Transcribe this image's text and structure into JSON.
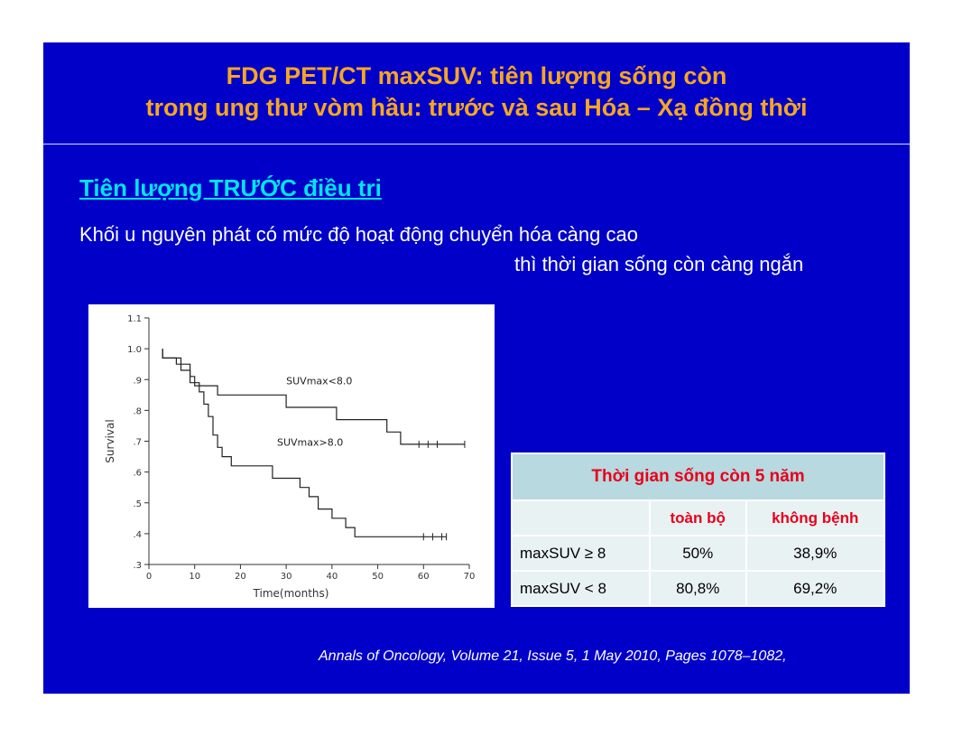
{
  "slide": {
    "title_line1": "FDG PET/CT maxSUV: tiên lượng sống còn",
    "title_line2": "trong ung thư vòm hầu: trước và sau Hóa – Xạ đồng thời",
    "subheading": "Tiên lượng TRƯỚC điều tri",
    "body_line1": "Khối u nguyên phát có mức độ hoạt động chuyển hóa càng cao",
    "body_line2": "thì thời gian sống còn càng ngắn",
    "citation": "Annals of Oncology, Volume 21, Issue 5, 1 May 2010, Pages 1078–1082,"
  },
  "colors": {
    "background": "#0000c8",
    "title": "#f5a623",
    "subheading": "#00e5ee",
    "table_header": "#e8001c"
  },
  "table": {
    "title": "Thời gian sống còn 5 năm",
    "columns": [
      "",
      "toàn bộ",
      "không bệnh"
    ],
    "rows": [
      [
        "maxSUV ≥ 8",
        "50%",
        "38,9%"
      ],
      [
        "maxSUV < 8",
        "80,8%",
        "69,2%"
      ]
    ]
  },
  "chart_data": {
    "type": "line",
    "xlabel": "Time(months)",
    "ylabel": "Survival",
    "xlim": [
      0,
      70
    ],
    "ylim": [
      0.3,
      1.1
    ],
    "x_ticks": [
      "0",
      "10",
      "20",
      "30",
      "40",
      "50",
      "60",
      "70"
    ],
    "y_ticks": [
      ".3",
      ".4",
      ".5",
      ".6",
      ".7",
      ".8",
      ".9",
      "1.0",
      "1.1"
    ],
    "series": [
      {
        "name": "SUVmax<8.0",
        "step": [
          [
            3,
            1.0
          ],
          [
            3,
            0.97
          ],
          [
            7,
            0.97
          ],
          [
            7,
            0.95
          ],
          [
            9,
            0.95
          ],
          [
            9,
            0.91
          ],
          [
            10,
            0.91
          ],
          [
            10,
            0.88
          ],
          [
            15,
            0.88
          ],
          [
            15,
            0.85
          ],
          [
            30,
            0.85
          ],
          [
            30,
            0.81
          ],
          [
            41,
            0.81
          ],
          [
            41,
            0.77
          ],
          [
            52,
            0.77
          ],
          [
            52,
            0.73
          ],
          [
            55,
            0.73
          ],
          [
            55,
            0.69
          ],
          [
            69,
            0.69
          ]
        ],
        "censored": [
          [
            59,
            0.69
          ],
          [
            61,
            0.69
          ],
          [
            63,
            0.69
          ],
          [
            69,
            0.69
          ]
        ]
      },
      {
        "name": "SUVmax>8.0",
        "step": [
          [
            3,
            1.0
          ],
          [
            3,
            0.97
          ],
          [
            6,
            0.97
          ],
          [
            6,
            0.95
          ],
          [
            7,
            0.95
          ],
          [
            7,
            0.93
          ],
          [
            9,
            0.93
          ],
          [
            9,
            0.89
          ],
          [
            11,
            0.89
          ],
          [
            11,
            0.86
          ],
          [
            12,
            0.86
          ],
          [
            12,
            0.82
          ],
          [
            13,
            0.82
          ],
          [
            13,
            0.78
          ],
          [
            14,
            0.78
          ],
          [
            14,
            0.72
          ],
          [
            15,
            0.72
          ],
          [
            15,
            0.68
          ],
          [
            16,
            0.68
          ],
          [
            16,
            0.65
          ],
          [
            18,
            0.65
          ],
          [
            18,
            0.62
          ],
          [
            27,
            0.62
          ],
          [
            27,
            0.58
          ],
          [
            33,
            0.58
          ],
          [
            33,
            0.55
          ],
          [
            35,
            0.55
          ],
          [
            35,
            0.52
          ],
          [
            37,
            0.52
          ],
          [
            37,
            0.48
          ],
          [
            40,
            0.48
          ],
          [
            40,
            0.45
          ],
          [
            43,
            0.45
          ],
          [
            43,
            0.42
          ],
          [
            45,
            0.42
          ],
          [
            45,
            0.39
          ],
          [
            65,
            0.39
          ]
        ],
        "censored": [
          [
            60,
            0.39
          ],
          [
            62,
            0.39
          ],
          [
            64,
            0.39
          ],
          [
            65,
            0.39
          ]
        ]
      }
    ],
    "annotations": [
      "SUVmax<8.0",
      "SUVmax>8.0"
    ],
    "grid": false
  }
}
